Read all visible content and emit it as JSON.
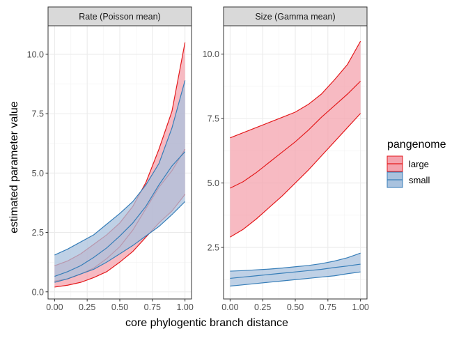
{
  "chart_data": {
    "type": "line",
    "layout": "facet",
    "xlabel": "core phylogentic branch distance",
    "ylabel": "estimated parameter value",
    "legend": {
      "title": "pangenome",
      "placement": "right",
      "entries": [
        "large",
        "small"
      ]
    },
    "colors": {
      "large": "#E41A1C",
      "small": "#377EB8",
      "large_fill": "#F4A3AE",
      "small_fill": "#A9C2DE",
      "panel_grid": "#EBEBEB",
      "strip_fill": "#D9D9D9"
    },
    "grid": true,
    "panels": [
      {
        "title": "Rate (Poisson mean)",
        "xlim": [
          -0.05,
          1.05
        ],
        "ylim": [
          -0.3,
          11.2
        ],
        "xticks": [
          0,
          0.25,
          0.5,
          0.75,
          1
        ],
        "xtick_labels": [
          "0.00",
          "0.25",
          "0.50",
          "0.75",
          "1.00"
        ],
        "yticks": [
          0,
          2.5,
          5,
          7.5,
          10
        ],
        "ytick_labels": [
          "0.0",
          "2.5",
          "5.0",
          "7.5",
          "10.0"
        ],
        "series": [
          {
            "name": "large",
            "x": [
              0,
              0.1,
              0.2,
              0.3,
              0.4,
              0.5,
              0.6,
              0.7,
              0.8,
              0.9,
              1
            ],
            "mean": [
              0.45,
              0.55,
              0.75,
              1.0,
              1.4,
              1.9,
              2.6,
              3.5,
              4.4,
              5.1,
              6.0
            ],
            "lower": [
              0.2,
              0.28,
              0.4,
              0.6,
              0.85,
              1.25,
              1.7,
              2.3,
              2.9,
              3.4,
              4.1
            ],
            "upper": [
              1.1,
              1.3,
              1.6,
              2.0,
              2.4,
              2.9,
              3.6,
              4.6,
              6.0,
              7.6,
              10.5
            ]
          },
          {
            "name": "small",
            "x": [
              0,
              0.1,
              0.2,
              0.3,
              0.4,
              0.5,
              0.6,
              0.7,
              0.8,
              0.9,
              1
            ],
            "mean": [
              0.65,
              0.85,
              1.1,
              1.45,
              1.85,
              2.35,
              2.9,
              3.6,
              4.5,
              5.3,
              5.9
            ],
            "lower": [
              0.4,
              0.55,
              0.75,
              0.95,
              1.25,
              1.6,
              1.95,
              2.35,
              2.75,
              3.25,
              3.8
            ],
            "upper": [
              1.55,
              1.8,
              2.1,
              2.4,
              2.85,
              3.3,
              3.8,
              4.5,
              5.4,
              6.9,
              8.9
            ]
          }
        ]
      },
      {
        "title": "Size (Gamma mean)",
        "xlim": [
          -0.05,
          1.05
        ],
        "ylim": [
          0.5,
          11.1
        ],
        "xticks": [
          0,
          0.25,
          0.5,
          0.75,
          1
        ],
        "xtick_labels": [
          "0.00",
          "0.25",
          "0.50",
          "0.75",
          "1.00"
        ],
        "yticks": [
          2.5,
          5,
          7.5,
          10
        ],
        "ytick_labels": [
          "2.5",
          "5.0",
          "7.5",
          "10.0"
        ],
        "series": [
          {
            "name": "large",
            "x": [
              0,
              0.1,
              0.2,
              0.3,
              0.4,
              0.5,
              0.6,
              0.7,
              0.8,
              0.9,
              1
            ],
            "mean": [
              4.8,
              5.05,
              5.4,
              5.8,
              6.2,
              6.6,
              7.05,
              7.55,
              8.0,
              8.45,
              8.95
            ],
            "lower": [
              2.9,
              3.2,
              3.6,
              4.05,
              4.5,
              5.0,
              5.5,
              6.05,
              6.6,
              7.15,
              7.7
            ],
            "upper": [
              6.75,
              6.95,
              7.15,
              7.35,
              7.55,
              7.75,
              8.05,
              8.45,
              9.0,
              9.6,
              10.5
            ]
          },
          {
            "name": "small",
            "x": [
              0,
              0.1,
              0.2,
              0.3,
              0.4,
              0.5,
              0.6,
              0.7,
              0.8,
              0.9,
              1
            ],
            "mean": [
              1.3,
              1.35,
              1.4,
              1.45,
              1.5,
              1.55,
              1.6,
              1.65,
              1.72,
              1.78,
              1.85
            ],
            "lower": [
              1.0,
              1.05,
              1.1,
              1.15,
              1.2,
              1.25,
              1.3,
              1.35,
              1.4,
              1.48,
              1.55
            ],
            "upper": [
              1.58,
              1.6,
              1.63,
              1.66,
              1.7,
              1.75,
              1.8,
              1.87,
              1.97,
              2.1,
              2.28
            ]
          }
        ]
      }
    ]
  }
}
